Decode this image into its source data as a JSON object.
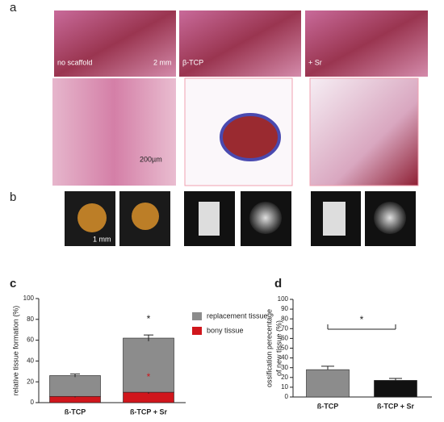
{
  "panel_labels": {
    "a": "a",
    "b": "b"
  },
  "image_labels": {
    "no_scaffold": "no scaffold",
    "scale_2mm": "2 mm",
    "tcp": "β-TCP",
    "sr": "+ Sr",
    "scale_200um": "200µm",
    "scale_1mm": "1 mm"
  },
  "chart_data": [
    {
      "type": "stacked-bar",
      "panel": "c",
      "ylabel": "relative tissue formation (%)",
      "categories": [
        "ß-TCP",
        "ß-TCP + Sr"
      ],
      "series": [
        {
          "name": "bony tissue",
          "color": "#d0161c",
          "values": [
            6,
            10
          ],
          "errors": [
            1,
            1.5
          ]
        },
        {
          "name": "replacement tissue",
          "color": "#8c8c8c",
          "values": [
            20,
            52
          ],
          "errors": [
            1.5,
            3
          ]
        }
      ],
      "annotations": [
        "*",
        "*"
      ],
      "ylim": [
        0,
        100
      ],
      "yticks": [
        0,
        20,
        40,
        60,
        80,
        100
      ]
    },
    {
      "type": "bar",
      "panel": "d",
      "ylabel": [
        "ossification perecentage",
        "of new tissue (%)"
      ],
      "categories": [
        "ß-TCP",
        "ß-TCP + Sr"
      ],
      "values": [
        28,
        17
      ],
      "errors": [
        3.5,
        2
      ],
      "colors": [
        "#8c8c8c",
        "#111111"
      ],
      "annotations": [
        "*"
      ],
      "ylim": [
        0,
        100
      ],
      "yticks": [
        0,
        10,
        20,
        30,
        40,
        50,
        60,
        70,
        80,
        90,
        100
      ]
    }
  ]
}
